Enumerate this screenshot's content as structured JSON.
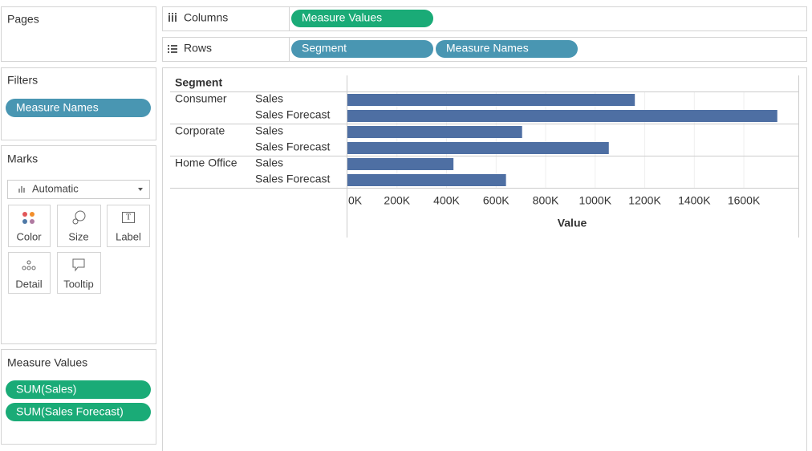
{
  "pages": {
    "title": "Pages"
  },
  "filters": {
    "title": "Filters",
    "pills": [
      "Measure Names"
    ]
  },
  "marks": {
    "title": "Marks",
    "mark_type": "Automatic",
    "buttons": [
      "Color",
      "Size",
      "Label",
      "Detail",
      "Tooltip"
    ]
  },
  "measure_values": {
    "title": "Measure Values",
    "pills": [
      "SUM(Sales)",
      "SUM(Sales Forecast)"
    ]
  },
  "shelves": {
    "columns": {
      "label": "Columns",
      "pills": [
        "Measure Values"
      ]
    },
    "rows": {
      "label": "Rows",
      "pills": [
        "Segment",
        "Measure Names"
      ]
    }
  },
  "chart_data": {
    "type": "bar",
    "orientation": "horizontal",
    "row_header": "Segment",
    "x_label": "Value",
    "color": "#4e6fa3",
    "groups": [
      {
        "name": "Consumer",
        "categories": [
          "Sales",
          "Sales Forecast"
        ],
        "values": [
          1160000,
          1735000
        ]
      },
      {
        "name": "Corporate",
        "categories": [
          "Sales",
          "Sales Forecast"
        ],
        "values": [
          705000,
          1055000
        ]
      },
      {
        "name": "Home Office",
        "categories": [
          "Sales",
          "Sales Forecast"
        ],
        "values": [
          428000,
          640000
        ]
      }
    ],
    "xlim": [
      0,
      1820000
    ],
    "xticks": [
      {
        "value": 0,
        "label": "0K"
      },
      {
        "value": 200000,
        "label": "200K"
      },
      {
        "value": 400000,
        "label": "400K"
      },
      {
        "value": 600000,
        "label": "600K"
      },
      {
        "value": 800000,
        "label": "800K"
      },
      {
        "value": 1000000,
        "label": "1000K"
      },
      {
        "value": 1200000,
        "label": "1200K"
      },
      {
        "value": 1400000,
        "label": "1400K"
      },
      {
        "value": 1600000,
        "label": "1600K"
      }
    ],
    "grid": true
  }
}
